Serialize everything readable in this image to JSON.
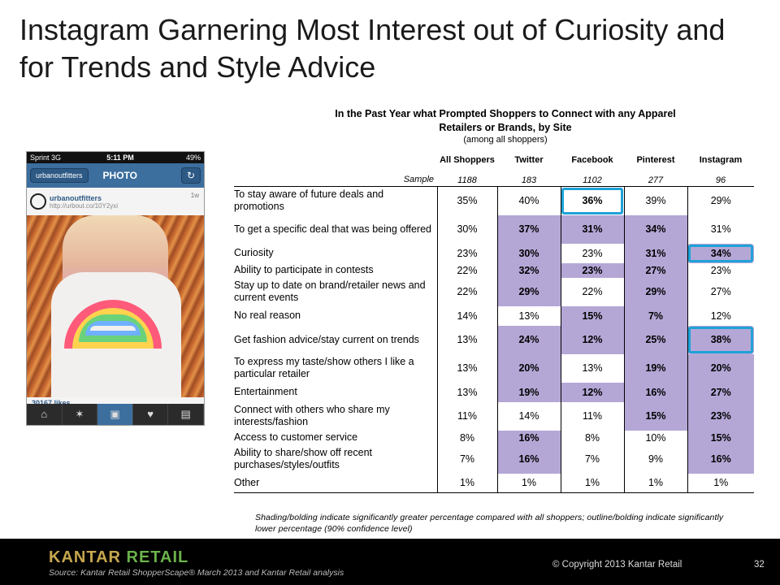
{
  "slide": {
    "title": "Instagram Garnering Most Interest out of Curiosity and for Trends and Style Advice"
  },
  "survey": {
    "title": "In the Past Year what Prompted Shoppers to Connect with any Apparel Retailers or Brands, by Site",
    "subtitle": "(among all shoppers)"
  },
  "phone": {
    "carrier": "Sprint 3G",
    "time": "5:11 PM",
    "battery": "49%",
    "back_label": "urbanoutfitters",
    "screen_title": "PHOTO",
    "refresh_icon": "refresh-icon",
    "username": "urbanoutfitters",
    "link": "http://urbout.co/10Y2yxi",
    "age": "1w",
    "likes": "30167 likes",
    "tabs": [
      "home-icon",
      "explore-icon",
      "camera-icon",
      "heart-icon",
      "profile-icon"
    ]
  },
  "table": {
    "columns": [
      "All Shoppers",
      "Twitter",
      "Facebook",
      "Pinterest",
      "Instagram"
    ],
    "sample_label": "Sample",
    "sample": [
      "1188",
      "183",
      "1102",
      "277",
      "96"
    ],
    "rows": [
      {
        "label": "To stay aware of future deals and promotions",
        "values": [
          "35%",
          "40%",
          "36%",
          "39%",
          "29%"
        ]
      },
      {
        "label": "To get a specific deal that was being offered",
        "values": [
          "30%",
          "37%",
          "31%",
          "34%",
          "31%"
        ]
      },
      {
        "label": "Curiosity",
        "values": [
          "23%",
          "30%",
          "23%",
          "31%",
          "34%"
        ]
      },
      {
        "label": "Ability to participate in contests",
        "values": [
          "22%",
          "32%",
          "23%",
          "27%",
          "23%"
        ]
      },
      {
        "label": "Stay up to date on brand/retailer news and current events",
        "values": [
          "22%",
          "29%",
          "22%",
          "29%",
          "27%"
        ]
      },
      {
        "label": "No real reason",
        "values": [
          "14%",
          "13%",
          "15%",
          "7%",
          "12%"
        ]
      },
      {
        "label": "Get fashion advice/stay current on trends",
        "values": [
          "13%",
          "24%",
          "12%",
          "25%",
          "38%"
        ]
      },
      {
        "label": "To express my taste/show others I like a particular retailer",
        "values": [
          "13%",
          "20%",
          "13%",
          "19%",
          "20%"
        ]
      },
      {
        "label": "Entertainment",
        "values": [
          "13%",
          "19%",
          "12%",
          "16%",
          "27%"
        ]
      },
      {
        "label": "Connect with others who share my interests/fashion",
        "values": [
          "11%",
          "14%",
          "11%",
          "15%",
          "23%"
        ]
      },
      {
        "label": "Access to customer service",
        "values": [
          "8%",
          "16%",
          "8%",
          "10%",
          "15%"
        ]
      },
      {
        "label": "Ability to share/show off recent purchases/styles/outfits",
        "values": [
          "7%",
          "16%",
          "7%",
          "9%",
          "16%"
        ]
      },
      {
        "label": "Other",
        "values": [
          "1%",
          "1%",
          "1%",
          "1%",
          "1%"
        ]
      }
    ],
    "highlight_color": "#b4a7d6",
    "outline_color": "#1fa2d8"
  },
  "footnote": "Shading/bolding indicate significantly greater percentage compared with all shoppers; outline/bolding indicate significantly lower percentage (90% confidence level)",
  "footer": {
    "logo_part1": "KANTAR",
    "logo_part2": "RETAIL",
    "source": "Source: Kantar Retail ShopperScape® March 2013 and Kantar Retail analysis",
    "copyright": "© Copyright 2013 Kantar Retail",
    "page_number": "32"
  }
}
